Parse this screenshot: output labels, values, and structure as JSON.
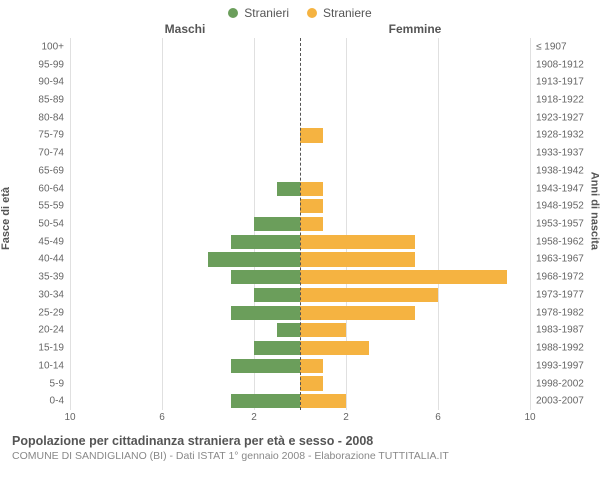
{
  "chart": {
    "type": "population-pyramid",
    "legend": {
      "male": {
        "label": "Stranieri",
        "color": "#6b9e5b"
      },
      "female": {
        "label": "Straniere",
        "color": "#f5b341"
      }
    },
    "side_titles": {
      "left": "Maschi",
      "right": "Femmine"
    },
    "y_axis_left": "Fasce di età",
    "y_axis_right": "Anni di nascita",
    "x_axis": {
      "max": 10,
      "ticks": [
        10,
        6,
        2,
        2,
        6,
        10
      ]
    },
    "grid_color": "#e0e0e0",
    "center_line_color": "#555555",
    "background_color": "#ffffff",
    "bar_inset_pct": 10,
    "label_fontsize": 10,
    "rows": [
      {
        "age": "100+",
        "birth": "≤ 1907",
        "male": 0,
        "female": 0
      },
      {
        "age": "95-99",
        "birth": "1908-1912",
        "male": 0,
        "female": 0
      },
      {
        "age": "90-94",
        "birth": "1913-1917",
        "male": 0,
        "female": 0
      },
      {
        "age": "85-89",
        "birth": "1918-1922",
        "male": 0,
        "female": 0
      },
      {
        "age": "80-84",
        "birth": "1923-1927",
        "male": 0,
        "female": 0
      },
      {
        "age": "75-79",
        "birth": "1928-1932",
        "male": 0,
        "female": 1
      },
      {
        "age": "70-74",
        "birth": "1933-1937",
        "male": 0,
        "female": 0
      },
      {
        "age": "65-69",
        "birth": "1938-1942",
        "male": 0,
        "female": 0
      },
      {
        "age": "60-64",
        "birth": "1943-1947",
        "male": 1,
        "female": 1
      },
      {
        "age": "55-59",
        "birth": "1948-1952",
        "male": 0,
        "female": 1
      },
      {
        "age": "50-54",
        "birth": "1953-1957",
        "male": 2,
        "female": 1
      },
      {
        "age": "45-49",
        "birth": "1958-1962",
        "male": 3,
        "female": 5
      },
      {
        "age": "40-44",
        "birth": "1963-1967",
        "male": 4,
        "female": 5
      },
      {
        "age": "35-39",
        "birth": "1968-1972",
        "male": 3,
        "female": 9
      },
      {
        "age": "30-34",
        "birth": "1973-1977",
        "male": 2,
        "female": 6
      },
      {
        "age": "25-29",
        "birth": "1978-1982",
        "male": 3,
        "female": 5
      },
      {
        "age": "20-24",
        "birth": "1983-1987",
        "male": 1,
        "female": 2
      },
      {
        "age": "15-19",
        "birth": "1988-1992",
        "male": 2,
        "female": 3
      },
      {
        "age": "10-14",
        "birth": "1993-1997",
        "male": 3,
        "female": 1
      },
      {
        "age": "5-9",
        "birth": "1998-2002",
        "male": 0,
        "female": 1
      },
      {
        "age": "0-4",
        "birth": "2003-2007",
        "male": 3,
        "female": 2
      }
    ]
  },
  "footer": {
    "title": "Popolazione per cittadinanza straniera per età e sesso - 2008",
    "subtitle": "COMUNE DI SANDIGLIANO (BI) - Dati ISTAT 1° gennaio 2008 - Elaborazione TUTTITALIA.IT"
  }
}
